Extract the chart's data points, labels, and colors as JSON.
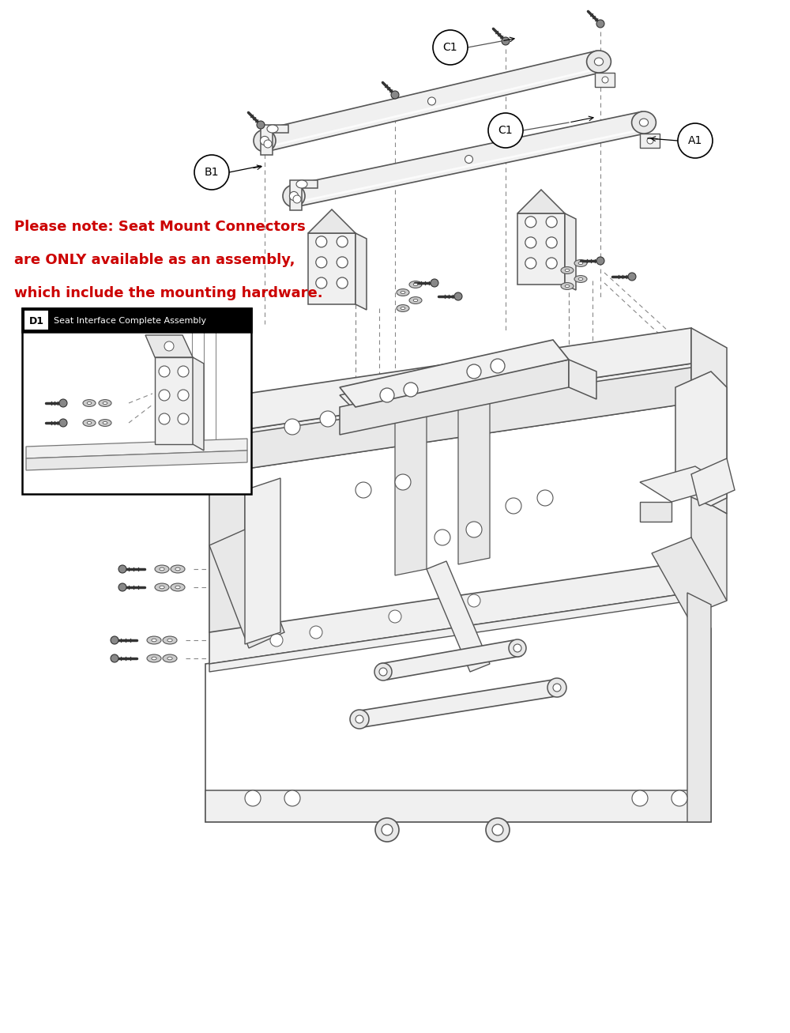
{
  "background_color": "#ffffff",
  "note_text_line1": "Please note: Seat Mount Connectors",
  "note_text_line2": "are ONLY available as an assembly,",
  "note_text_line3": "which include the mounting hardware.",
  "note_color": "#cc0000",
  "note_fontsize": 13,
  "label_A1": "A1",
  "label_B1": "B1",
  "label_C1_1": "C1",
  "label_C1_2": "C1",
  "draw_color": "#444444",
  "edge_color": "#555555",
  "face_color": "#f0f0f0",
  "face_color2": "#e8e8e8",
  "face_color3": "#ebebeb"
}
